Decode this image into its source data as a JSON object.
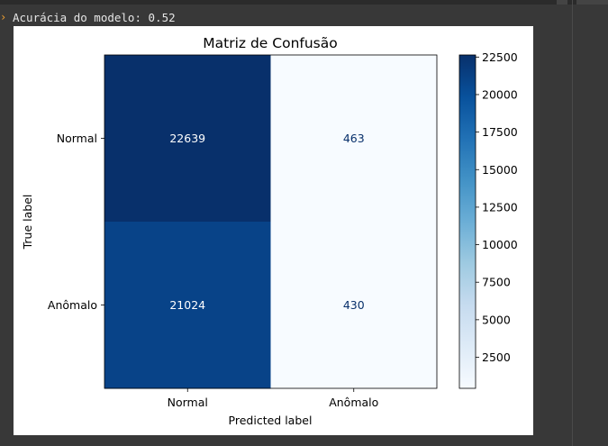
{
  "output": {
    "text": "Acurácia do modelo: 0.52"
  },
  "chart_data": {
    "type": "heatmap",
    "title": "Matriz de Confusão",
    "xlabel": "Predicted label",
    "ylabel": "True label",
    "x_categories": [
      "Normal",
      "Anômalo"
    ],
    "y_categories": [
      "Normal",
      "Anômalo"
    ],
    "values": [
      [
        22639,
        463
      ],
      [
        21024,
        430
      ]
    ],
    "colormap": "Blues",
    "colorbar": {
      "min": 430,
      "max": 22639,
      "ticks": [
        2500,
        5000,
        7500,
        10000,
        12500,
        15000,
        17500,
        20000,
        22500
      ]
    },
    "grid": false
  }
}
